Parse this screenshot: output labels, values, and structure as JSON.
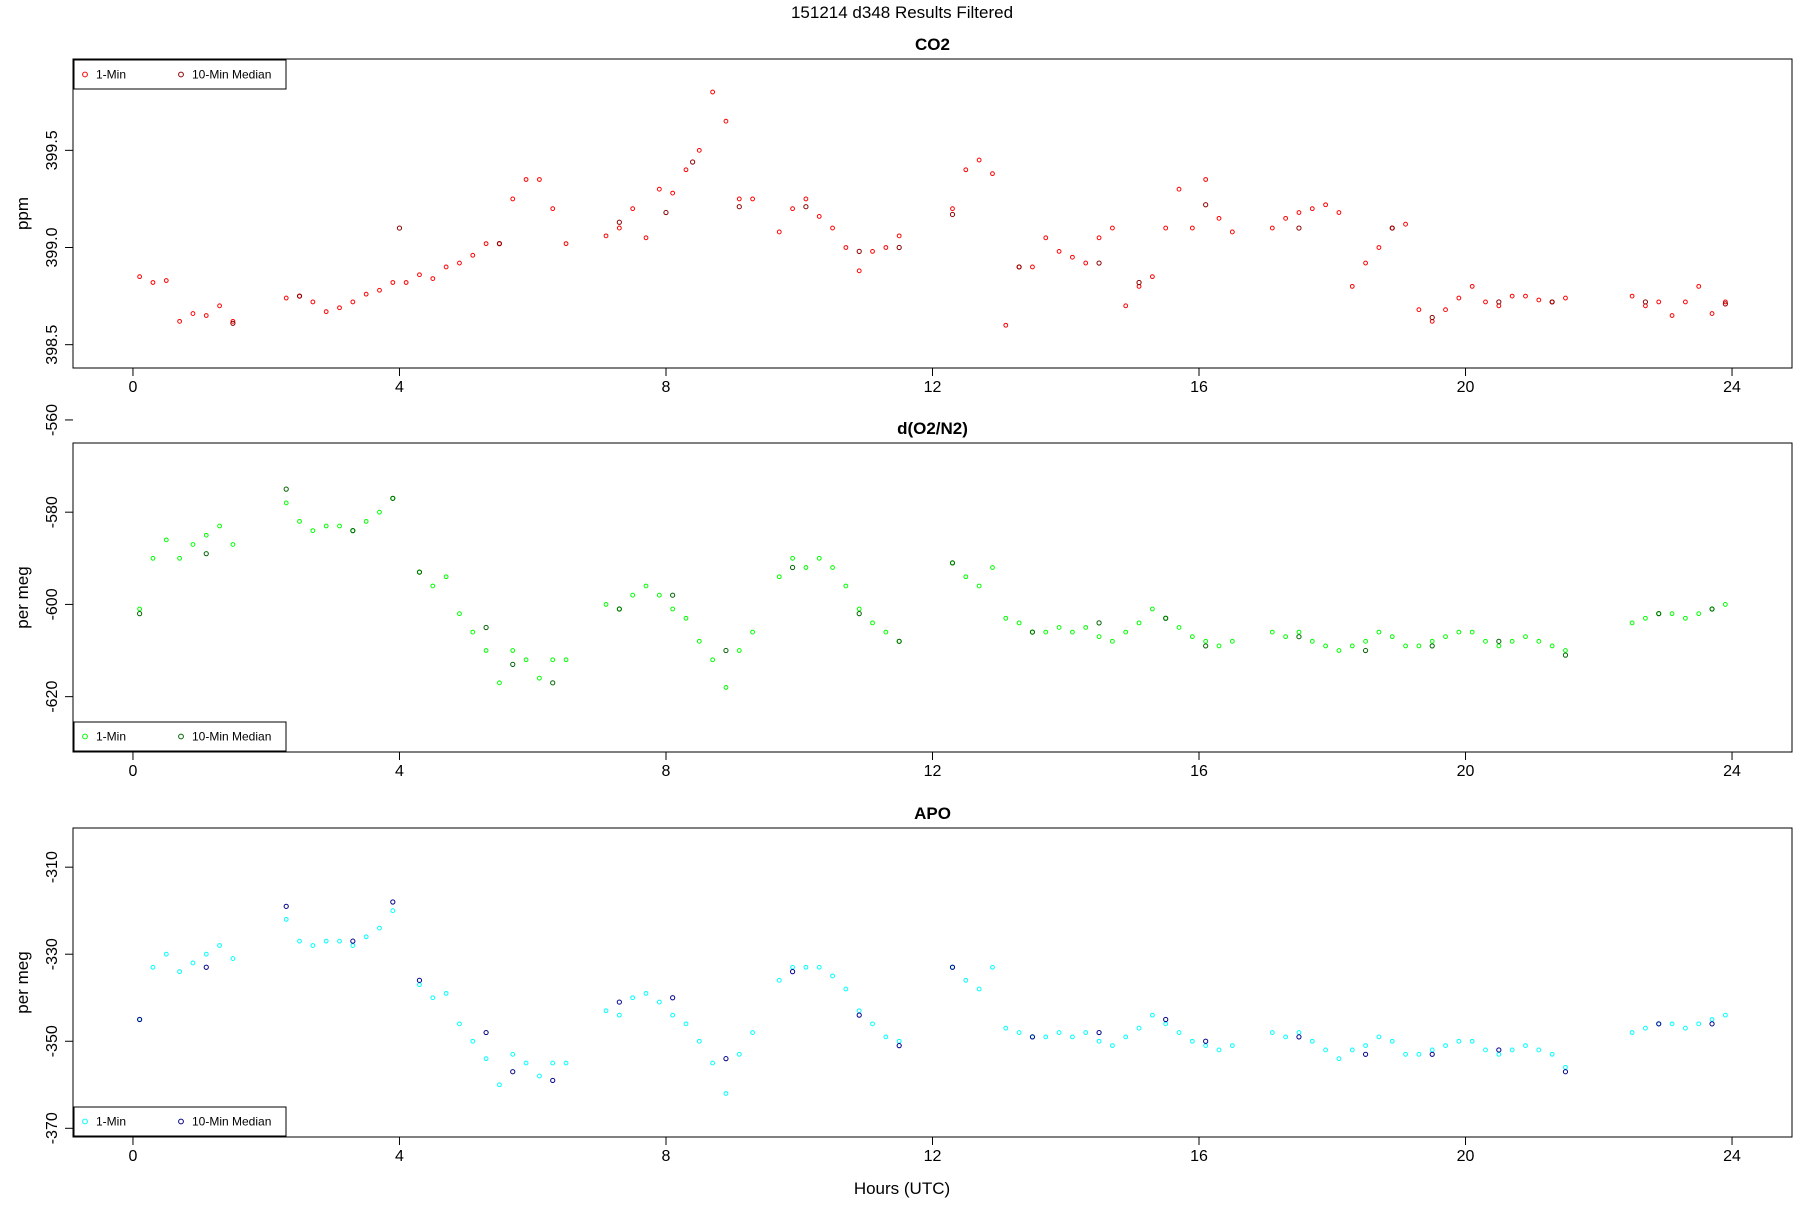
{
  "figure": {
    "title": "151214   d348   Results Filtered",
    "xlabel": "Hours (UTC)"
  },
  "chart_data": [
    {
      "type": "scatter",
      "title": "CO2",
      "xlabel": "",
      "ylabel": "ppm",
      "xlim": [
        -0.9,
        24.9
      ],
      "ylim": [
        398.38,
        399.97
      ],
      "xticks": [
        0,
        4,
        8,
        12,
        16,
        20,
        24
      ],
      "yticks": [
        398.5,
        399.0,
        399.5
      ],
      "ytick_labels": [
        "398.5",
        "399.0",
        "399.5"
      ],
      "grid": false,
      "legend_position": "top-left",
      "series": [
        {
          "name": "1-Min",
          "color": "#ff0000",
          "x": [
            0.1,
            0.3,
            0.5,
            0.7,
            0.9,
            1.1,
            1.3,
            1.5,
            2.3,
            2.5,
            2.7,
            2.9,
            3.1,
            3.3,
            3.5,
            3.7,
            3.9,
            4.1,
            4.3,
            4.5,
            4.7,
            4.9,
            5.1,
            5.3,
            5.5,
            5.7,
            5.9,
            6.1,
            6.3,
            6.5,
            7.1,
            7.3,
            7.5,
            7.7,
            7.9,
            8.1,
            8.3,
            8.5,
            8.7,
            8.9,
            9.1,
            9.3,
            9.7,
            9.9,
            10.1,
            10.3,
            10.5,
            10.7,
            10.9,
            11.1,
            11.3,
            11.5,
            12.3,
            12.5,
            12.7,
            12.9,
            13.1,
            13.3,
            13.5,
            13.7,
            13.9,
            14.1,
            14.3,
            14.5,
            14.7,
            14.9,
            15.1,
            15.3,
            15.5,
            15.7,
            15.9,
            16.1,
            16.3,
            16.5,
            17.1,
            17.3,
            17.5,
            17.7,
            17.9,
            18.1,
            18.3,
            18.5,
            18.7,
            18.9,
            19.1,
            19.3,
            19.5,
            19.7,
            19.9,
            20.1,
            20.3,
            20.5,
            20.7,
            20.9,
            21.1,
            21.3,
            21.5,
            22.5,
            22.7,
            22.9,
            23.1,
            23.3,
            23.5,
            23.7,
            23.9
          ],
          "y": [
            398.85,
            398.82,
            398.83,
            398.62,
            398.66,
            398.65,
            398.7,
            398.62,
            398.74,
            398.75,
            398.72,
            398.67,
            398.69,
            398.72,
            398.76,
            398.78,
            398.82,
            398.82,
            398.86,
            398.84,
            398.9,
            398.92,
            398.96,
            399.02,
            399.02,
            399.25,
            399.35,
            399.35,
            399.2,
            399.02,
            399.06,
            399.1,
            399.2,
            399.05,
            399.3,
            399.28,
            399.4,
            399.5,
            399.8,
            399.65,
            399.25,
            399.25,
            399.08,
            399.2,
            399.25,
            399.16,
            399.1,
            399.0,
            398.88,
            398.98,
            399.0,
            399.06,
            399.2,
            399.4,
            399.45,
            399.38,
            398.6,
            398.9,
            398.9,
            399.05,
            398.98,
            398.95,
            398.92,
            399.05,
            399.1,
            398.7,
            398.8,
            398.85,
            399.1,
            399.3,
            399.1,
            399.35,
            399.15,
            399.08,
            399.1,
            399.15,
            399.18,
            399.2,
            399.22,
            399.18,
            398.8,
            398.92,
            399.0,
            399.1,
            399.12,
            398.68,
            398.62,
            398.68,
            398.74,
            398.8,
            398.72,
            398.7,
            398.75,
            398.75,
            398.73,
            398.72,
            398.74,
            398.75,
            398.7,
            398.72,
            398.65,
            398.72,
            398.8,
            398.66,
            398.72
          ]
        },
        {
          "name": "10-Min Median",
          "color": "#8b0000",
          "x": [
            1.5,
            2.5,
            4.0,
            5.5,
            7.3,
            8.0,
            8.4,
            9.1,
            10.1,
            10.9,
            11.5,
            12.3,
            13.3,
            14.5,
            15.1,
            16.1,
            17.5,
            18.9,
            19.5,
            20.5,
            21.3,
            22.7,
            23.9
          ],
          "y": [
            398.61,
            398.75,
            399.1,
            399.02,
            399.13,
            399.18,
            399.44,
            399.21,
            399.21,
            398.98,
            399.0,
            399.17,
            398.9,
            398.92,
            398.82,
            399.22,
            399.1,
            399.1,
            398.64,
            398.72,
            398.72,
            398.72,
            398.71
          ]
        }
      ]
    },
    {
      "type": "scatter",
      "title": "d(O2/N2)",
      "xlabel": "",
      "ylabel": "per meg",
      "xlim": [
        -0.9,
        24.9
      ],
      "ylim": [
        -632,
        -565
      ],
      "xticks": [
        0,
        4,
        8,
        12,
        16,
        20,
        24
      ],
      "yticks": [
        -620,
        -600,
        -580,
        -560
      ],
      "ytick_labels": [
        "-620",
        "-600",
        "-580",
        "-560"
      ],
      "grid": false,
      "legend_position": "bottom-left",
      "series": [
        {
          "name": "1-Min",
          "color": "#00ff00",
          "x": [
            0.1,
            0.3,
            0.5,
            0.7,
            0.9,
            1.1,
            1.3,
            1.5,
            2.3,
            2.5,
            2.7,
            2.9,
            3.1,
            3.3,
            3.5,
            3.7,
            3.9,
            4.3,
            4.5,
            4.7,
            4.9,
            5.1,
            5.3,
            5.5,
            5.7,
            5.9,
            6.1,
            6.3,
            6.5,
            7.1,
            7.3,
            7.5,
            7.7,
            7.9,
            8.1,
            8.3,
            8.5,
            8.7,
            8.9,
            9.1,
            9.3,
            9.7,
            9.9,
            10.1,
            10.3,
            10.5,
            10.7,
            10.9,
            11.1,
            11.3,
            11.5,
            12.3,
            12.5,
            12.7,
            12.9,
            13.1,
            13.3,
            13.5,
            13.7,
            13.9,
            14.1,
            14.3,
            14.5,
            14.7,
            14.9,
            15.1,
            15.3,
            15.5,
            15.7,
            15.9,
            16.1,
            16.3,
            16.5,
            17.1,
            17.3,
            17.5,
            17.7,
            17.9,
            18.1,
            18.3,
            18.5,
            18.7,
            18.9,
            19.1,
            19.3,
            19.5,
            19.7,
            19.9,
            20.1,
            20.3,
            20.5,
            20.7,
            20.9,
            21.1,
            21.3,
            21.5,
            22.5,
            22.7,
            22.9,
            23.1,
            23.3,
            23.5,
            23.7,
            23.9
          ],
          "y": [
            -601,
            -590,
            -586,
            -590,
            -587,
            -585,
            -583,
            -587,
            -578,
            -582,
            -584,
            -583,
            -583,
            -584,
            -582,
            -580,
            -577,
            -593,
            -596,
            -594,
            -602,
            -606,
            -610,
            -617,
            -610,
            -612,
            -616,
            -612,
            -612,
            -600,
            -601,
            -598,
            -596,
            -598,
            -601,
            -603,
            -608,
            -612,
            -618,
            -610,
            -606,
            -594,
            -590,
            -592,
            -590,
            -592,
            -596,
            -601,
            -604,
            -606,
            -608,
            -591,
            -594,
            -596,
            -592,
            -603,
            -604,
            -606,
            -606,
            -605,
            -606,
            -605,
            -607,
            -608,
            -606,
            -604,
            -601,
            -603,
            -605,
            -607,
            -608,
            -609,
            -608,
            -606,
            -607,
            -606,
            -608,
            -609,
            -610,
            -609,
            -608,
            -606,
            -607,
            -609,
            -609,
            -608,
            -607,
            -606,
            -606,
            -608,
            -609,
            -608,
            -607,
            -608,
            -609,
            -610,
            -604,
            -603,
            -602,
            -602,
            -603,
            -602,
            -601,
            -600
          ]
        },
        {
          "name": "10-Min Median",
          "color": "#006400",
          "x": [
            0.1,
            1.1,
            2.3,
            3.3,
            3.9,
            4.3,
            5.3,
            5.7,
            6.3,
            7.3,
            8.1,
            8.9,
            9.9,
            10.9,
            11.5,
            12.3,
            13.5,
            14.5,
            15.5,
            16.1,
            17.5,
            18.5,
            19.5,
            20.5,
            21.5,
            22.9,
            23.7
          ],
          "y": [
            -602,
            -589,
            -575,
            -584,
            -577,
            -593,
            -605,
            -613,
            -617,
            -601,
            -598,
            -610,
            -592,
            -602,
            -608,
            -591,
            -606,
            -604,
            -603,
            -609,
            -607,
            -610,
            -609,
            -608,
            -611,
            -602,
            -601
          ]
        }
      ]
    },
    {
      "type": "scatter",
      "title": "APO",
      "xlabel": "Hours (UTC)",
      "ylabel": "per meg",
      "xlim": [
        -0.9,
        24.9
      ],
      "ylim": [
        -372,
        -301
      ],
      "xticks": [
        0,
        4,
        8,
        12,
        16,
        20,
        24
      ],
      "yticks": [
        -370,
        -350,
        -330,
        -310
      ],
      "ytick_labels": [
        "-370",
        "-350",
        "-330",
        "-310"
      ],
      "grid": false,
      "legend_position": "bottom-left",
      "series": [
        {
          "name": "1-Min",
          "color": "#00ffff",
          "x": [
            0.1,
            0.3,
            0.5,
            0.7,
            0.9,
            1.1,
            1.3,
            1.5,
            2.3,
            2.5,
            2.7,
            2.9,
            3.1,
            3.3,
            3.5,
            3.7,
            3.9,
            4.3,
            4.5,
            4.7,
            4.9,
            5.1,
            5.3,
            5.5,
            5.7,
            5.9,
            6.1,
            6.3,
            6.5,
            7.1,
            7.3,
            7.5,
            7.7,
            7.9,
            8.1,
            8.3,
            8.5,
            8.7,
            8.9,
            9.1,
            9.3,
            9.7,
            9.9,
            10.1,
            10.3,
            10.5,
            10.7,
            10.9,
            11.1,
            11.3,
            11.5,
            12.3,
            12.5,
            12.7,
            12.9,
            13.1,
            13.3,
            13.5,
            13.7,
            13.9,
            14.1,
            14.3,
            14.5,
            14.7,
            14.9,
            15.1,
            15.3,
            15.5,
            15.7,
            15.9,
            16.1,
            16.3,
            16.5,
            17.1,
            17.3,
            17.5,
            17.7,
            17.9,
            18.1,
            18.3,
            18.5,
            18.7,
            18.9,
            19.1,
            19.3,
            19.5,
            19.7,
            19.9,
            20.1,
            20.3,
            20.5,
            20.7,
            20.9,
            21.1,
            21.3,
            21.5,
            22.5,
            22.7,
            22.9,
            23.1,
            23.3,
            23.5,
            23.7,
            23.9
          ],
          "y": [
            -345,
            -333,
            -330,
            -334,
            -332,
            -330,
            -328,
            -331,
            -322,
            -327,
            -328,
            -327,
            -327,
            -328,
            -326,
            -324,
            -320,
            -337,
            -340,
            -339,
            -346,
            -350,
            -354,
            -360,
            -353,
            -355,
            -358,
            -355,
            -355,
            -343,
            -344,
            -340,
            -339,
            -341,
            -344,
            -346,
            -350,
            -355,
            -362,
            -353,
            -348,
            -336,
            -333,
            -333,
            -333,
            -335,
            -338,
            -343,
            -346,
            -349,
            -350,
            -333,
            -336,
            -338,
            -333,
            -347,
            -348,
            -349,
            -349,
            -348,
            -349,
            -348,
            -350,
            -351,
            -349,
            -347,
            -344,
            -346,
            -348,
            -350,
            -351,
            -352,
            -351,
            -348,
            -349,
            -348,
            -350,
            -352,
            -354,
            -352,
            -351,
            -349,
            -350,
            -353,
            -353,
            -352,
            -351,
            -350,
            -350,
            -352,
            -353,
            -352,
            -351,
            -352,
            -353,
            -356,
            -348,
            -347,
            -346,
            -346,
            -347,
            -346,
            -345,
            -344
          ]
        },
        {
          "name": "10-Min Median",
          "color": "#00008b",
          "x": [
            0.1,
            1.1,
            2.3,
            3.3,
            3.9,
            4.3,
            5.3,
            5.7,
            6.3,
            7.3,
            8.1,
            8.9,
            9.9,
            10.9,
            11.5,
            12.3,
            13.5,
            14.5,
            15.5,
            16.1,
            17.5,
            18.5,
            19.5,
            20.5,
            21.5,
            22.9,
            23.7
          ],
          "y": [
            -345,
            -333,
            -319,
            -327,
            -318,
            -336,
            -348,
            -357,
            -359,
            -341,
            -340,
            -354,
            -334,
            -344,
            -351,
            -333,
            -349,
            -348,
            -345,
            -350,
            -349,
            -353,
            -353,
            -352,
            -357,
            -346,
            -346
          ]
        }
      ]
    }
  ]
}
